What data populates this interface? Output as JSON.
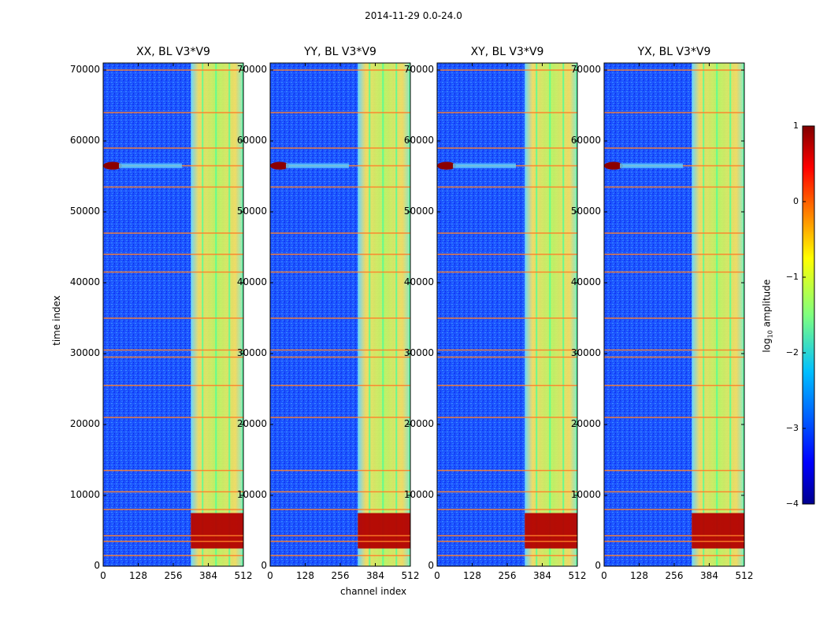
{
  "suptitle": "2014-11-29 0.0-24.0",
  "panels": [
    {
      "title": "XX, BL V3*V9",
      "y_tick_labels": [
        "0",
        "10000",
        "20000",
        "30000",
        "40000",
        "50000",
        "60000",
        "70000"
      ]
    },
    {
      "title": "YY, BL V3*V9",
      "y_tick_labels": [
        "0",
        "10000",
        "20000",
        "30000",
        "40000",
        "50000",
        "60000",
        "70000"
      ]
    },
    {
      "title": "XY, BL V3*V9",
      "y_tick_labels": [
        "0",
        "10000",
        "20000",
        "30000",
        "40000",
        "50000",
        "60000",
        "70000"
      ]
    },
    {
      "title": "YX, BL V3*V9",
      "y_tick_labels": [
        "0",
        "10000",
        "20000",
        "30000",
        "40000",
        "50000",
        "60000",
        "70000"
      ]
    }
  ],
  "x_tick_labels": [
    "0",
    "128",
    "256",
    "384",
    "512"
  ],
  "xlabel": "channel index",
  "ylabel": "time index",
  "colorbar": {
    "label_main": "log",
    "label_sub": "10",
    "label_tail": " amplitude",
    "tick_labels": [
      "1",
      "0",
      "−1",
      "−2",
      "−3",
      "−4"
    ]
  },
  "colors": {
    "low": "#00008f",
    "mid_low": "#0a6cff",
    "mid": "#7fff7f",
    "mid_high": "#ffd400",
    "high": "#800000",
    "hline": "#ff7f2a"
  },
  "chart_data": {
    "type": "heatmap",
    "title": "2014-11-29 0.0-24.0",
    "xlabel": "channel index",
    "ylabel": "time index",
    "xlim": [
      0,
      512
    ],
    "ylim": [
      0,
      71000
    ],
    "x_ticks": [
      0,
      128,
      256,
      384,
      512
    ],
    "y_ticks": [
      0,
      10000,
      20000,
      30000,
      40000,
      50000,
      60000,
      70000
    ],
    "colorbar": {
      "label": "log10 amplitude",
      "range": [
        -4,
        1
      ],
      "ticks": [
        1,
        0,
        -1,
        -2,
        -3,
        -4
      ],
      "colormap": "jet"
    },
    "series": [
      {
        "name": "XX, BL V3*V9"
      },
      {
        "name": "YY, BL V3*V9"
      },
      {
        "name": "XY, BL V3*V9"
      },
      {
        "name": "YX, BL V3*V9"
      }
    ],
    "features": {
      "high_amplitude_band_channels": [
        320,
        512
      ],
      "high_amplitude_time_range": [
        2500,
        7500
      ],
      "horizontal_lines_time": [
        1500,
        3500,
        4300,
        8000,
        10500,
        13500,
        21000,
        25500,
        29500,
        30500,
        35000,
        41500,
        44000,
        47000,
        53500,
        56500,
        59000,
        64000,
        70000
      ]
    }
  }
}
